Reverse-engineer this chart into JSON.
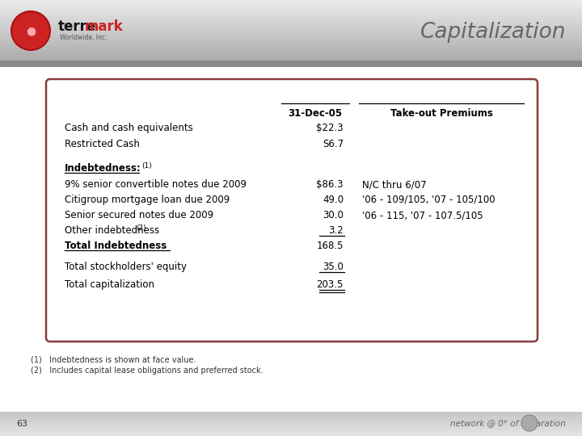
{
  "title": "Capitalization",
  "header_col1": "31-Dec-05",
  "header_col2": "Take-out Premiums",
  "cash_rows": [
    {
      "label": "Cash and cash equivalents",
      "val1": "$22.3"
    },
    {
      "label": "Restricted Cash",
      "val1": "S6.7"
    }
  ],
  "indebtedness_label": "Indebtedness:",
  "indebtedness_sup": "(1)",
  "indebtedness_rows": [
    {
      "label": "9% senior convertible notes due 2009",
      "val1": "$86.3",
      "val2": "N/C thru 6/07",
      "underline_val": false,
      "sup": ""
    },
    {
      "label": "Citigroup mortgage loan due 2009",
      "val1": "49.0",
      "val2": "'06 - 109/105, '07 - 105/100",
      "underline_val": false,
      "sup": ""
    },
    {
      "label": "Senior secured notes due 2009",
      "val1": "30.0",
      "val2": "'06 - 115, '07 - 107.5/105",
      "underline_val": false,
      "sup": ""
    },
    {
      "label": "Other indebtedness",
      "val1": "3.2",
      "val2": "",
      "underline_val": true,
      "sup": "(2)"
    }
  ],
  "total_indebtedness_label": "Total Indebtedness",
  "total_indebtedness_val": "168.5",
  "bottom_rows": [
    {
      "label": "Total stockholders' equity",
      "val1": "35.0",
      "underline_val": true,
      "double_underline": false
    },
    {
      "label": "Total capitalization",
      "val1": "203.5",
      "underline_val": true,
      "double_underline": true
    }
  ],
  "footnotes": [
    "(1)   Indebtedness is shown at face value.",
    "(2)   Includes capital lease obligations and preferred stock."
  ],
  "page_number": "63",
  "slide_bg": "#ffffff",
  "title_color": "#666666",
  "box_border_color": "#8B3A3A",
  "footnote_color": "#333333"
}
